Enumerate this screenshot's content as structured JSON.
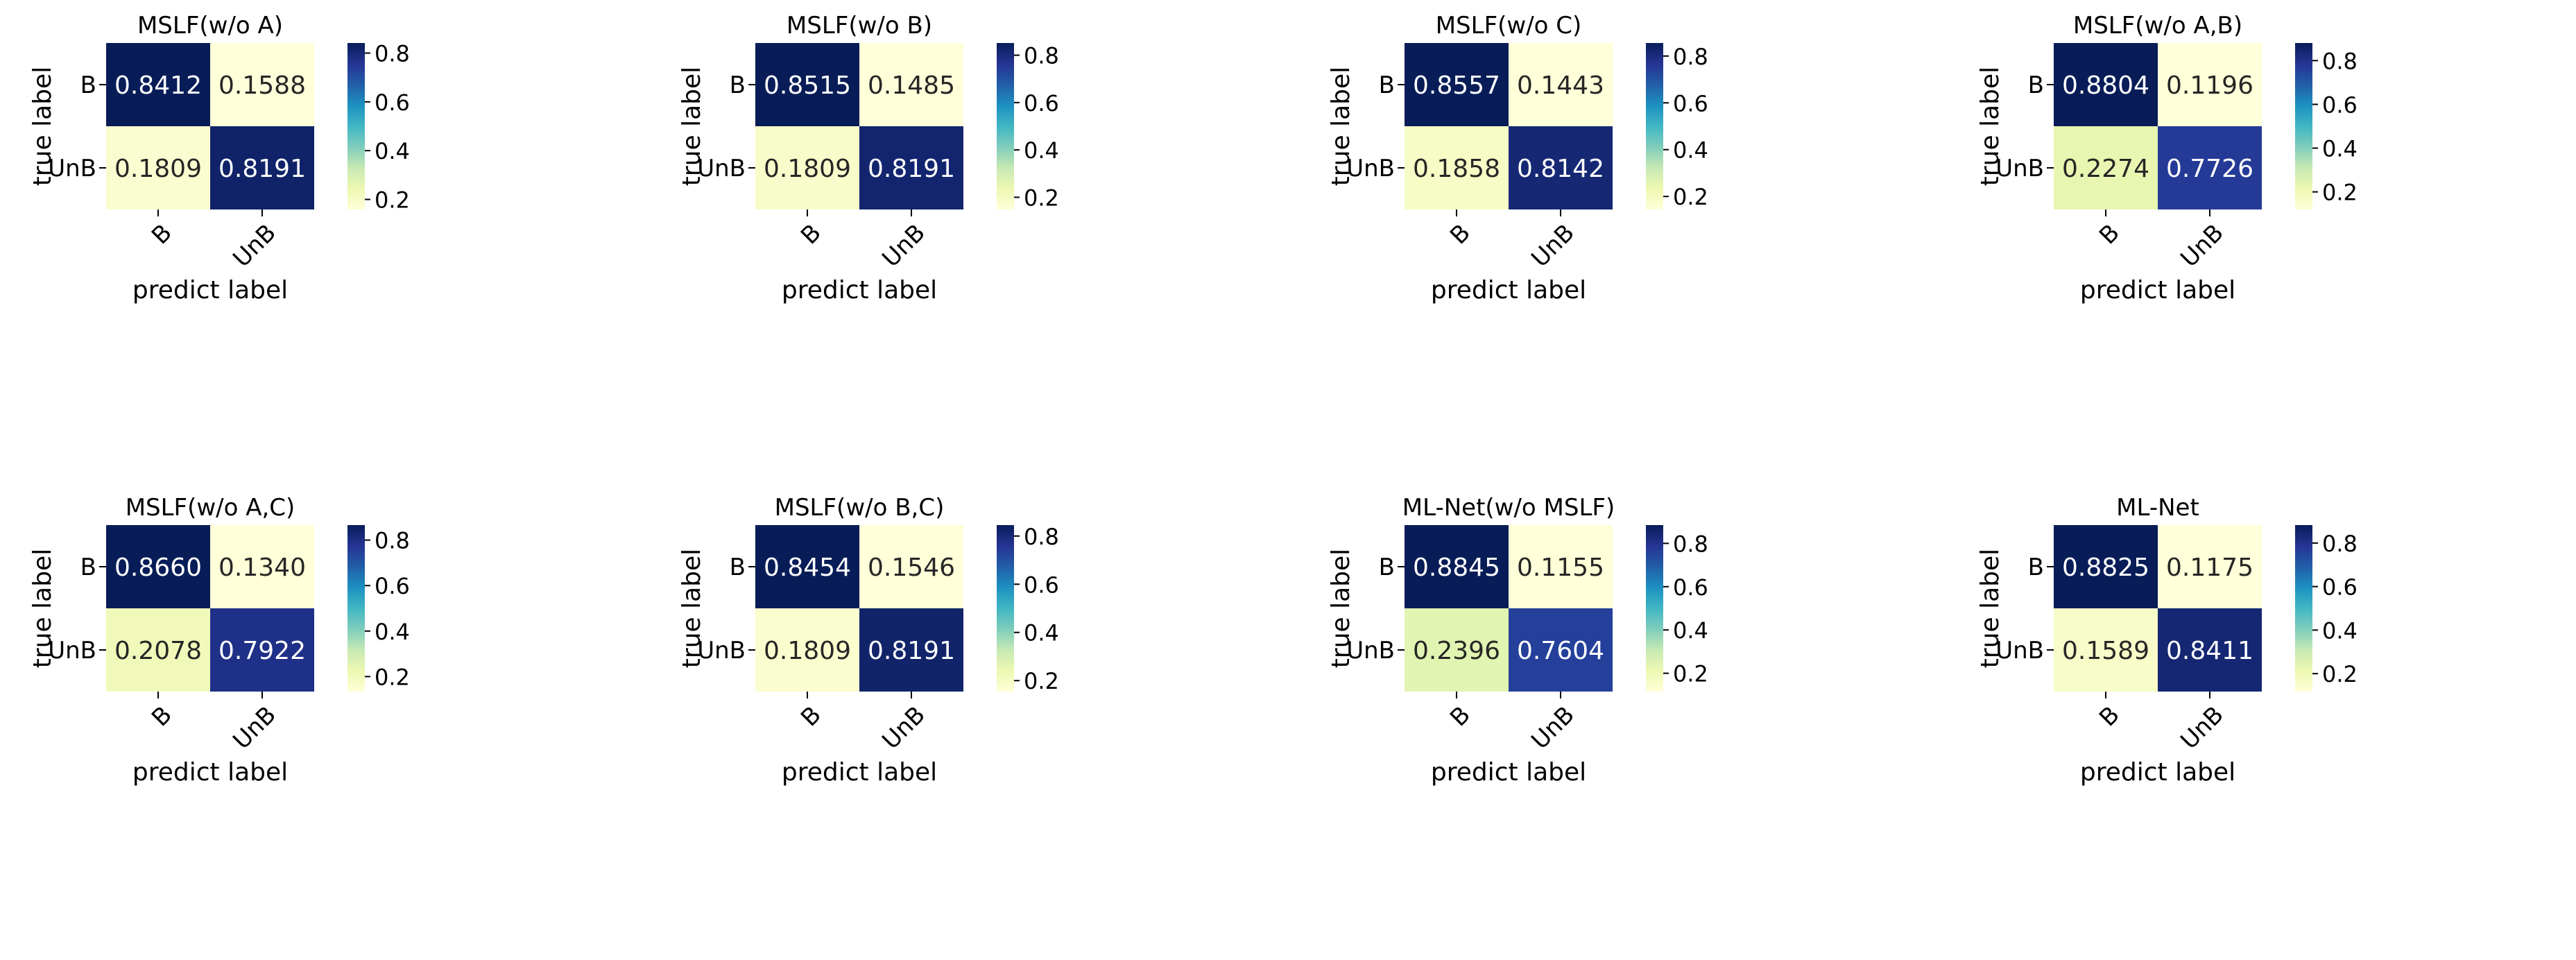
{
  "chart_data": [
    {
      "type": "heatmap",
      "title": "MSLF(w/o A)",
      "xlabel": "predict label",
      "ylabel": "true label",
      "x_categories": [
        "B",
        "UnB"
      ],
      "y_categories": [
        "B",
        "UnB"
      ],
      "matrix": [
        [
          0.8412,
          0.1588
        ],
        [
          0.1809,
          0.8191
        ]
      ],
      "cell_labels": [
        [
          "0.8412",
          "0.1588"
        ],
        [
          "0.1809",
          "0.8191"
        ]
      ],
      "colorbar": {
        "range": [
          0.1588,
          0.8412
        ],
        "ticks": [
          0.2,
          0.4,
          0.6,
          0.8
        ],
        "tick_labels": [
          "0.2",
          "0.4",
          "0.6",
          "0.8"
        ]
      }
    },
    {
      "type": "heatmap",
      "title": "MSLF(w/o B)",
      "xlabel": "predict label",
      "ylabel": "true label",
      "x_categories": [
        "B",
        "UnB"
      ],
      "y_categories": [
        "B",
        "UnB"
      ],
      "matrix": [
        [
          0.8515,
          0.1485
        ],
        [
          0.1809,
          0.8191
        ]
      ],
      "cell_labels": [
        [
          "0.8515",
          "0.1485"
        ],
        [
          "0.1809",
          "0.8191"
        ]
      ],
      "colorbar": {
        "range": [
          0.1485,
          0.8515
        ],
        "ticks": [
          0.2,
          0.4,
          0.6,
          0.8
        ],
        "tick_labels": [
          "0.2",
          "0.4",
          "0.6",
          "0.8"
        ]
      }
    },
    {
      "type": "heatmap",
      "title": "MSLF(w/o C)",
      "xlabel": "predict label",
      "ylabel": "true label",
      "x_categories": [
        "B",
        "UnB"
      ],
      "y_categories": [
        "B",
        "UnB"
      ],
      "matrix": [
        [
          0.8557,
          0.1443
        ],
        [
          0.1858,
          0.8142
        ]
      ],
      "cell_labels": [
        [
          "0.8557",
          "0.1443"
        ],
        [
          "0.1858",
          "0.8142"
        ]
      ],
      "colorbar": {
        "range": [
          0.1443,
          0.8557
        ],
        "ticks": [
          0.2,
          0.4,
          0.6,
          0.8
        ],
        "tick_labels": [
          "0.2",
          "0.4",
          "0.6",
          "0.8"
        ]
      }
    },
    {
      "type": "heatmap",
      "title": "MSLF(w/o A,B)",
      "xlabel": "predict label",
      "ylabel": "true label",
      "x_categories": [
        "B",
        "UnB"
      ],
      "y_categories": [
        "B",
        "UnB"
      ],
      "matrix": [
        [
          0.8804,
          0.1196
        ],
        [
          0.2274,
          0.7726
        ]
      ],
      "cell_labels": [
        [
          "0.8804",
          "0.1196"
        ],
        [
          "0.2274",
          "0.7726"
        ]
      ],
      "colorbar": {
        "range": [
          0.1196,
          0.8804
        ],
        "ticks": [
          0.2,
          0.4,
          0.6,
          0.8
        ],
        "tick_labels": [
          "0.2",
          "0.4",
          "0.6",
          "0.8"
        ]
      }
    },
    {
      "type": "heatmap",
      "title": "MSLF(w/o A,C)",
      "xlabel": "predict label",
      "ylabel": "true label",
      "x_categories": [
        "B",
        "UnB"
      ],
      "y_categories": [
        "B",
        "UnB"
      ],
      "matrix": [
        [
          0.866,
          0.134
        ],
        [
          0.2078,
          0.7922
        ]
      ],
      "cell_labels": [
        [
          "0.8660",
          "0.1340"
        ],
        [
          "0.2078",
          "0.7922"
        ]
      ],
      "colorbar": {
        "range": [
          0.134,
          0.866
        ],
        "ticks": [
          0.2,
          0.4,
          0.6,
          0.8
        ],
        "tick_labels": [
          "0.2",
          "0.4",
          "0.6",
          "0.8"
        ]
      }
    },
    {
      "type": "heatmap",
      "title": "MSLF(w/o B,C)",
      "xlabel": "predict label",
      "ylabel": "true label",
      "x_categories": [
        "B",
        "UnB"
      ],
      "y_categories": [
        "B",
        "UnB"
      ],
      "matrix": [
        [
          0.8454,
          0.1546
        ],
        [
          0.1809,
          0.8191
        ]
      ],
      "cell_labels": [
        [
          "0.8454",
          "0.1546"
        ],
        [
          "0.1809",
          "0.8191"
        ]
      ],
      "colorbar": {
        "range": [
          0.1546,
          0.8454
        ],
        "ticks": [
          0.2,
          0.4,
          0.6,
          0.8
        ],
        "tick_labels": [
          "0.2",
          "0.4",
          "0.6",
          "0.8"
        ]
      }
    },
    {
      "type": "heatmap",
      "title": "ML-Net(w/o MSLF)",
      "xlabel": "predict label",
      "ylabel": "true label",
      "x_categories": [
        "B",
        "UnB"
      ],
      "y_categories": [
        "B",
        "UnB"
      ],
      "matrix": [
        [
          0.8845,
          0.1155
        ],
        [
          0.2396,
          0.7604
        ]
      ],
      "cell_labels": [
        [
          "0.8845",
          "0.1155"
        ],
        [
          "0.2396",
          "0.7604"
        ]
      ],
      "colorbar": {
        "range": [
          0.1155,
          0.8845
        ],
        "ticks": [
          0.2,
          0.4,
          0.6,
          0.8
        ],
        "tick_labels": [
          "0.2",
          "0.4",
          "0.6",
          "0.8"
        ]
      }
    },
    {
      "type": "heatmap",
      "title": "ML-Net",
      "xlabel": "predict label",
      "ylabel": "true label",
      "x_categories": [
        "B",
        "UnB"
      ],
      "y_categories": [
        "B",
        "UnB"
      ],
      "matrix": [
        [
          0.8825,
          0.1175
        ],
        [
          0.1589,
          0.8411
        ]
      ],
      "cell_labels": [
        [
          "0.8825",
          "0.1175"
        ],
        [
          "0.1589",
          "0.8411"
        ]
      ],
      "colorbar": {
        "range": [
          0.1175,
          0.8825
        ],
        "ticks": [
          0.2,
          0.4,
          0.6,
          0.8
        ],
        "tick_labels": [
          "0.2",
          "0.4",
          "0.6",
          "0.8"
        ]
      }
    }
  ]
}
